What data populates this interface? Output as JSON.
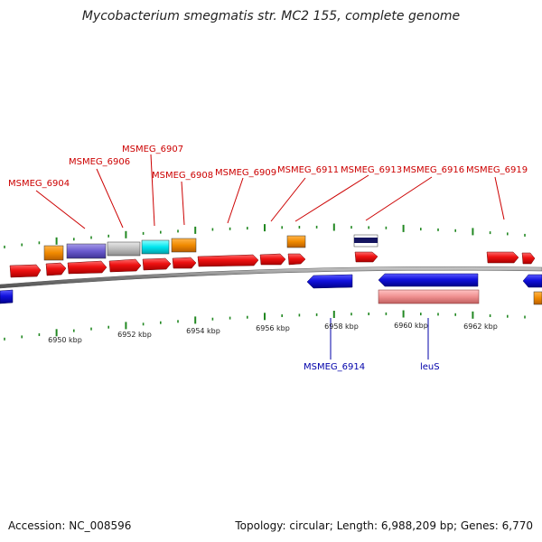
{
  "title": "Mycobacterium smegmatis str. MC2 155, complete genome",
  "accession_text": "Accession: NC_008596",
  "summary_text": "Topology: circular; Length: 6,988,209 bp; Genes: 6,770",
  "ruler_labels": [
    "6950 kbp",
    "6952 kbp",
    "6954 kbp",
    "6956 kbp",
    "6958 kbp",
    "6960 kbp",
    "6962 kbp"
  ],
  "top_labels": [
    "MSMEG_6904",
    "MSMEG_6906",
    "MSMEG_6907",
    "MSMEG_6908",
    "MSMEG_6909",
    "MSMEG_6911",
    "MSMEG_6913",
    "MSMEG_6916",
    "MSMEG_6919"
  ],
  "bottom_labels": [
    "MSMEG_6914",
    "leuS"
  ],
  "colors": {
    "forward_gene": "#ee1111",
    "reverse_gene": "#1111dd",
    "top_label": "#cc0000",
    "bottom_label": "#0000aa",
    "tick": "#228822",
    "backbone": "#888888"
  }
}
